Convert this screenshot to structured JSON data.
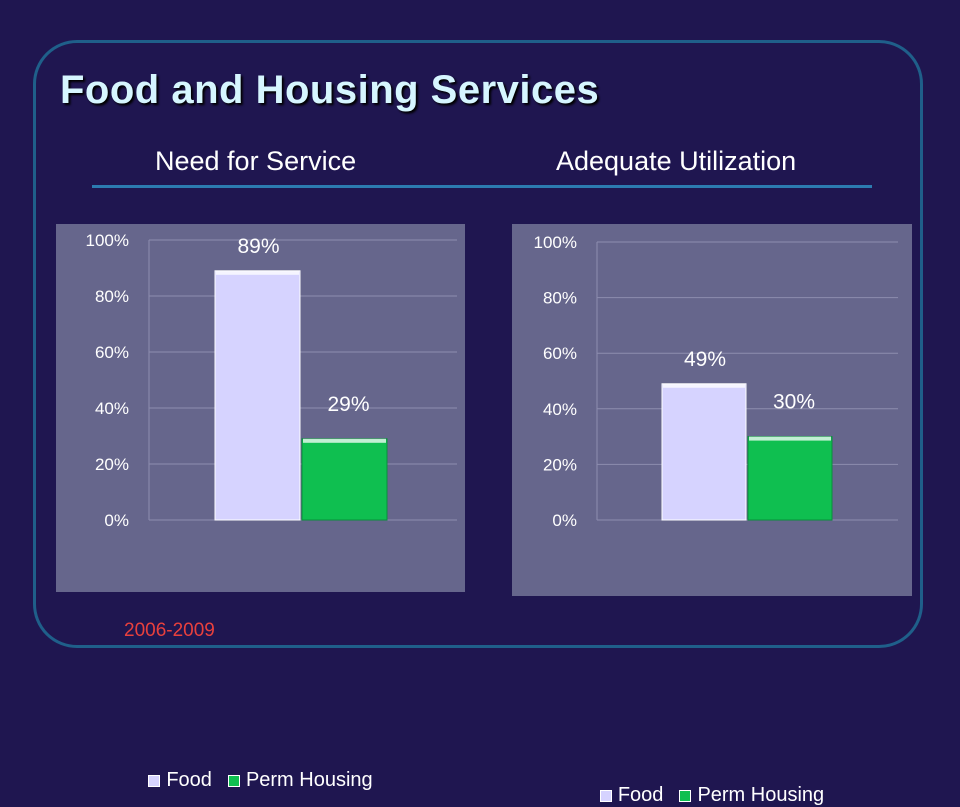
{
  "slide": {
    "title": "Food and Housing Services",
    "subtitle_left": "Need for Service",
    "subtitle_right": "Adequate Utilization",
    "footnote": "2006-2009"
  },
  "colors": {
    "background": "#1f1650",
    "title": "#d6f6ff",
    "plot_area": "#66668c",
    "food": "#d6d3ff",
    "perm_housing": "#0fbf50",
    "footnote": "#e8403d"
  },
  "chart_data": [
    {
      "type": "bar",
      "categories": [
        "Food",
        "Perm Housing"
      ],
      "values": [
        89,
        29
      ],
      "data_labels": [
        "89%",
        "29%"
      ],
      "ylim": [
        0,
        100
      ],
      "yticks": [
        "0%",
        "20%",
        "40%",
        "60%",
        "80%",
        "100%"
      ],
      "grid": true,
      "legend": "bottom",
      "legend_entries": [
        "Food",
        "Perm Housing"
      ]
    },
    {
      "type": "bar",
      "categories": [
        "Food",
        "Perm Housing"
      ],
      "values": [
        49,
        30
      ],
      "data_labels": [
        "49%",
        "30%"
      ],
      "ylim": [
        0,
        100
      ],
      "yticks": [
        "0%",
        "20%",
        "40%",
        "60%",
        "80%",
        "100%"
      ],
      "grid": true,
      "legend": "bottom",
      "legend_entries": [
        "Food",
        "Perm Housing"
      ]
    }
  ]
}
